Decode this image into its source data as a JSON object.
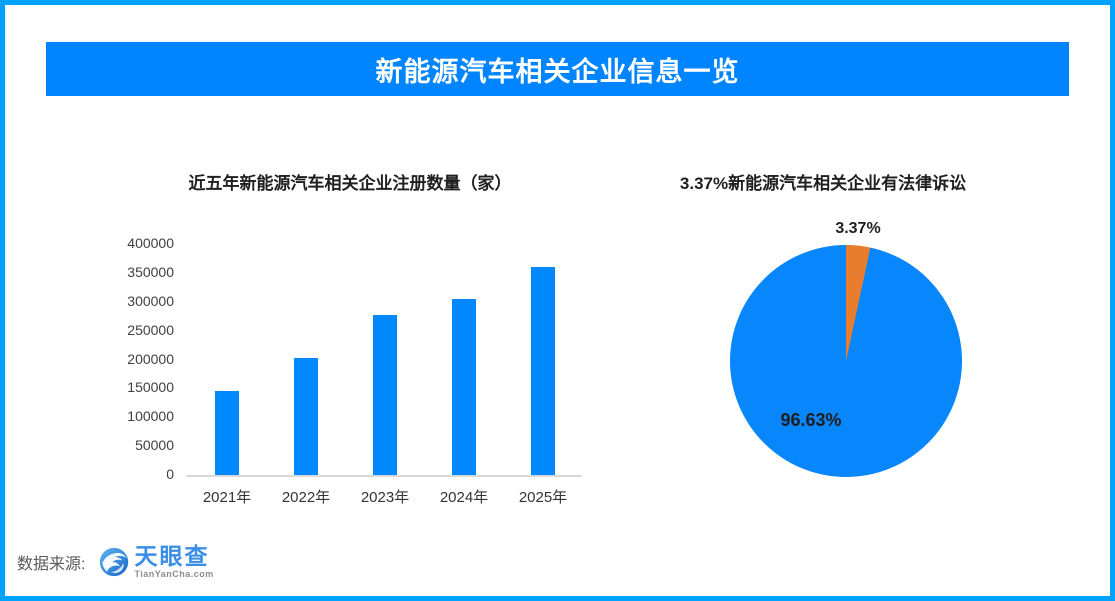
{
  "banner": {
    "title": "新能源汽车相关企业信息一览"
  },
  "chart_data": [
    {
      "type": "bar",
      "title": "近五年新能源汽车相关企业注册数量（家）",
      "categories": [
        "2021年",
        "2022年",
        "2023年",
        "2024年",
        "2025年"
      ],
      "values": [
        145000,
        202000,
        277000,
        305000,
        360000
      ],
      "xlabel": "",
      "ylabel": "",
      "ylim": [
        0,
        400000
      ],
      "yticks": [
        400000,
        350000,
        300000,
        250000,
        200000,
        150000,
        100000,
        50000,
        0
      ],
      "grid": false,
      "legend": "none",
      "bar_color": "#0088ff",
      "axis_line_color": "#d9d9d9"
    },
    {
      "type": "pie",
      "title": "3.37%新能源汽车相关企业有法律诉讼",
      "slices": [
        {
          "label": "3.37%",
          "value": 3.37,
          "color": "#e87d2e"
        },
        {
          "label": "96.63%",
          "value": 96.63,
          "color": "#0886fb"
        }
      ],
      "start_angle_deg": 0,
      "direction": "clockwise",
      "legend": "none"
    }
  ],
  "footer": {
    "source_label": "数据来源:",
    "brand": "天眼查",
    "brand_domain": "TianYanCha.com"
  },
  "colors": {
    "frame_border": "#00a2ff",
    "banner_bg": "#0084ff",
    "banner_text": "#ffffff",
    "bar_blue": "#0088ff",
    "pie_blue": "#0886fb",
    "pie_orange": "#e87d2e",
    "title_text": "#1f1f1f",
    "tick_text": "#404040",
    "footer_text": "#595959",
    "logo_blue": "#3a8ee6"
  }
}
